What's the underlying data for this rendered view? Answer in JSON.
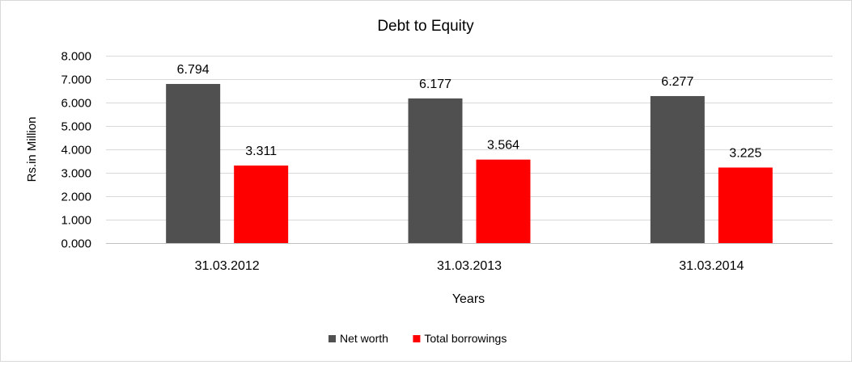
{
  "chart_data": {
    "type": "bar",
    "title": "Debt to Equity",
    "xlabel": "Years",
    "ylabel": "Rs.in Million",
    "categories": [
      "31.03.2012",
      "31.03.2013",
      "31.03.2014"
    ],
    "series": [
      {
        "name": "Net worth",
        "values": [
          6.794,
          6.177,
          6.277
        ],
        "value_labels": [
          "6.794",
          "6.177",
          "6.277"
        ],
        "color": "#505050"
      },
      {
        "name": "Total borrowings",
        "values": [
          3.311,
          3.564,
          3.225
        ],
        "value_labels": [
          "3.311",
          "3.564",
          "3.225"
        ],
        "color": "#ff0000"
      }
    ],
    "yticks": [
      "0.000",
      "1.000",
      "2.000",
      "3.000",
      "4.000",
      "5.000",
      "6.000",
      "7.000",
      "8.000"
    ],
    "ylim": [
      0,
      8
    ],
    "grid": true,
    "legend_position": "bottom"
  }
}
